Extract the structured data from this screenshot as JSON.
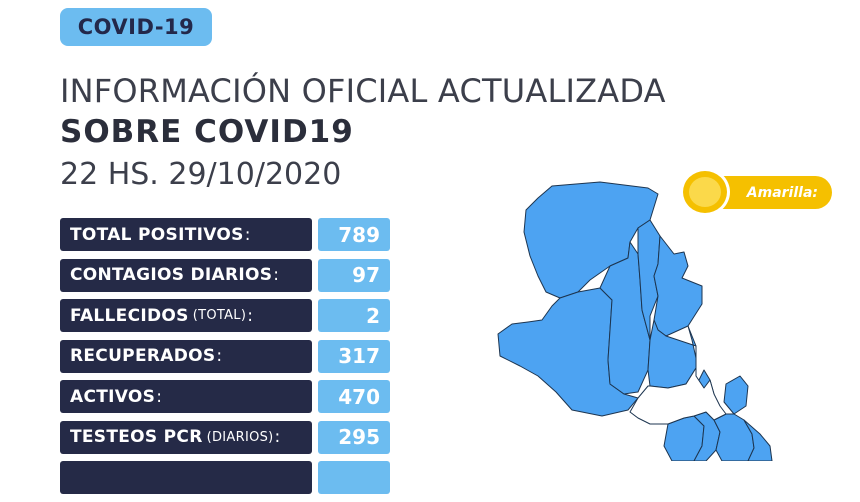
{
  "badge": "COVID-19",
  "heading_line1": "INFORMACIÓN OFICIAL ACTUALIZADA",
  "heading_line2": "SOBRE COVID19",
  "date": "22 HS. 29/10/2020",
  "stats": [
    {
      "label": "TOTAL POSITIVOS",
      "sub": "",
      "value": "789"
    },
    {
      "label": "CONTAGIOS DIARIOS",
      "sub": "",
      "value": "97"
    },
    {
      "label": "FALLECIDOS",
      "sub": "(TOTAL)",
      "value": "2"
    },
    {
      "label": "RECUPERADOS",
      "sub": "",
      "value": "317"
    },
    {
      "label": "ACTIVOS",
      "sub": "",
      "value": "470"
    },
    {
      "label": "TESTEOS PCR",
      "sub": "(DIARIOS)",
      "value": "295"
    }
  ],
  "legend": {
    "label": "Amarilla:",
    "color": "#f5c000"
  },
  "colors": {
    "accent": "#6cbcf0",
    "dark": "#252a47",
    "map_fill": "#4da3f2"
  }
}
